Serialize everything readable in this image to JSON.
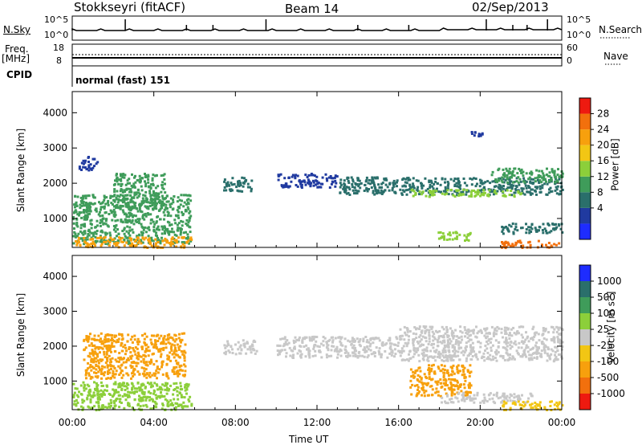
{
  "header": {
    "station": "Stokkseyri (fitACF)",
    "beam": "Beam 14",
    "date": "02/Sep/2013"
  },
  "top_panels": {
    "nsky_label": "N.Sky",
    "nsky_ticks": [
      "10^5",
      "10^0"
    ],
    "nsearch_label": "N.Search",
    "nsearch_ticks": [
      "10^5",
      "10^0"
    ],
    "freq_label_1": "Freq.",
    "freq_label_2": "[MHz]",
    "freq_ticks": [
      "18",
      "8"
    ],
    "nave_label": "Nave",
    "nave_ticks": [
      "60",
      "0"
    ],
    "cpid_label": "CPID",
    "cpid_value": "normal (fast) 151"
  },
  "chart_data": [
    {
      "type": "heatmap",
      "name_key": "power",
      "ylabel": "Slant Range [km]",
      "ylim": [
        180,
        4600
      ],
      "yticks": [
        "4000",
        "3000",
        "2000",
        "1000"
      ],
      "xticks": [
        "00:00",
        "04:00",
        "08:00",
        "12:00",
        "16:00",
        "20:00",
        "00:00"
      ],
      "colorbar_label": "Power [dB]",
      "colorbar_ticks": [
        "28",
        "24",
        "20",
        "16",
        "12",
        "8",
        "4"
      ],
      "colors": [
        "#1e2cff",
        "#203aa0",
        "#2a6f6b",
        "#3f9c5a",
        "#8ccf3a",
        "#f2c614",
        "#f7a00d",
        "#f2700d",
        "#ee1a10"
      ],
      "regions": [
        {
          "t": [
            0.0,
            5.8
          ],
          "r": [
            300,
            1700
          ],
          "v": 12
        },
        {
          "t": [
            0.0,
            5.8
          ],
          "r": [
            200,
            500
          ],
          "v": 26
        },
        {
          "t": [
            2.0,
            4.5
          ],
          "r": [
            1300,
            2300
          ],
          "v": 14
        },
        {
          "t": [
            0.3,
            1.2
          ],
          "r": [
            2400,
            2800
          ],
          "v": 6
        },
        {
          "t": [
            7.3,
            8.8
          ],
          "r": [
            1800,
            2200
          ],
          "v": 8
        },
        {
          "t": [
            10.0,
            13.0
          ],
          "r": [
            1900,
            2300
          ],
          "v": 5
        },
        {
          "t": [
            13.0,
            24.0
          ],
          "r": [
            1700,
            2200
          ],
          "v": 10
        },
        {
          "t": [
            16.5,
            22.0
          ],
          "r": [
            1650,
            1850
          ],
          "v": 18
        },
        {
          "t": [
            20.5,
            24.0
          ],
          "r": [
            2050,
            2450
          ],
          "v": 12
        },
        {
          "t": [
            17.8,
            19.6
          ],
          "r": [
            400,
            650
          ],
          "v": 16
        },
        {
          "t": [
            21.0,
            24.0
          ],
          "r": [
            200,
            400
          ],
          "v": 28
        },
        {
          "t": [
            21.0,
            24.0
          ],
          "r": [
            600,
            900
          ],
          "v": 8
        },
        {
          "t": [
            19.5,
            20.2
          ],
          "r": [
            3300,
            3500
          ],
          "v": 5
        }
      ]
    },
    {
      "type": "heatmap",
      "name_key": "velocity",
      "ylabel": "Slant Range [km]",
      "ylim": [
        180,
        4600
      ],
      "yticks": [
        "4000",
        "3000",
        "2000",
        "1000"
      ],
      "xticks": [
        "00:00",
        "04:00",
        "08:00",
        "12:00",
        "16:00",
        "20:00",
        "00:00"
      ],
      "xlabel": "Time UT",
      "colorbar_label": "Velocity [m s^-1]",
      "colorbar_ticks": [
        "1000",
        "500",
        "100",
        "25",
        "-25",
        "-100",
        "-500",
        "-1000"
      ],
      "colors": [
        "#1e2cff",
        "#2a6f6b",
        "#3f9c5a",
        "#8ccf3a",
        "#c8c8c8",
        "#f2c614",
        "#f7a00d",
        "#f2700d",
        "#ee1a10"
      ],
      "regions": [
        {
          "t": [
            0.0,
            5.8
          ],
          "r": [
            200,
            1000
          ],
          "v": 60
        },
        {
          "t": [
            0.5,
            5.5
          ],
          "r": [
            1100,
            2400
          ],
          "v": -300
        },
        {
          "t": [
            7.3,
            9.0
          ],
          "r": [
            1800,
            2200
          ],
          "v": 0
        },
        {
          "t": [
            10.0,
            16.0
          ],
          "r": [
            1700,
            2300
          ],
          "v": 0
        },
        {
          "t": [
            16.0,
            24.0
          ],
          "r": [
            1600,
            2600
          ],
          "v": 0
        },
        {
          "t": [
            16.5,
            19.5
          ],
          "r": [
            600,
            1500
          ],
          "v": -200
        },
        {
          "t": [
            18.0,
            22.5
          ],
          "r": [
            400,
            700
          ],
          "v": 0
        },
        {
          "t": [
            21.0,
            24.0
          ],
          "r": [
            200,
            450
          ],
          "v": -60
        }
      ]
    }
  ]
}
